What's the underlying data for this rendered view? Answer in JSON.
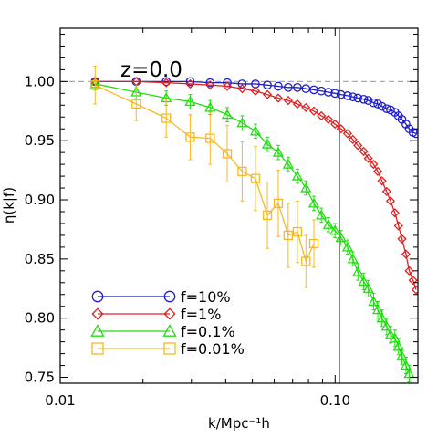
{
  "chart_data": {
    "type": "line",
    "annotation": "z=0.0",
    "xlabel": "k/Mpc⁻¹h",
    "ylabel": "η(k|f)",
    "xscale": "log",
    "xlim": [
      0.01,
      0.2
    ],
    "ylim": [
      0.745,
      1.045
    ],
    "xticks": [
      {
        "value": 0.01,
        "label": "0.01"
      },
      {
        "value": 0.1,
        "label": "0.10"
      }
    ],
    "yticks": [
      {
        "value": 0.75,
        "label": "0.75"
      },
      {
        "value": 0.8,
        "label": "0.80"
      },
      {
        "value": 0.85,
        "label": "0.85"
      },
      {
        "value": 0.9,
        "label": "0.90"
      },
      {
        "value": 0.95,
        "label": "0.95"
      },
      {
        "value": 1.0,
        "label": "1.00"
      }
    ],
    "reference_hline": 1.0,
    "reference_vline": 0.104,
    "grid": false,
    "legend_position": "bottom-left",
    "series": [
      {
        "name": "f=10%",
        "color": "#1f1fc8",
        "marker": "circle",
        "x": [
          0.0134,
          0.0189,
          0.0243,
          0.0297,
          0.0351,
          0.0405,
          0.0459,
          0.0513,
          0.0567,
          0.0621,
          0.0675,
          0.0729,
          0.0783,
          0.0837,
          0.0891,
          0.0945,
          0.0999,
          0.105,
          0.111,
          0.116,
          0.121,
          0.127,
          0.132,
          0.138,
          0.143,
          0.148,
          0.154,
          0.159,
          0.165,
          0.17,
          0.175,
          0.181,
          0.186,
          0.192,
          0.197
        ],
        "values": [
          1.0,
          1.0,
          1.0,
          1.0,
          0.999,
          0.999,
          0.998,
          0.998,
          0.997,
          0.996,
          0.995,
          0.995,
          0.994,
          0.993,
          0.992,
          0.991,
          0.99,
          0.989,
          0.988,
          0.987,
          0.986,
          0.985,
          0.984,
          0.982,
          0.981,
          0.979,
          0.977,
          0.976,
          0.974,
          0.971,
          0.968,
          0.964,
          0.96,
          0.957,
          0.956
        ],
        "errors": []
      },
      {
        "name": "f=1%",
        "color": "#e02020",
        "marker": "diamond",
        "x": [
          0.0134,
          0.0189,
          0.0243,
          0.0297,
          0.0351,
          0.0405,
          0.0459,
          0.0513,
          0.0567,
          0.0621,
          0.0675,
          0.0729,
          0.0783,
          0.0837,
          0.0891,
          0.0945,
          0.0999,
          0.105,
          0.111,
          0.116,
          0.121,
          0.127,
          0.132,
          0.138,
          0.143,
          0.148,
          0.154,
          0.159,
          0.165,
          0.17,
          0.175,
          0.181,
          0.186,
          0.192,
          0.197
        ],
        "values": [
          1.0,
          1.0,
          0.999,
          0.998,
          0.997,
          0.996,
          0.994,
          0.992,
          0.989,
          0.986,
          0.984,
          0.981,
          0.978,
          0.975,
          0.971,
          0.968,
          0.964,
          0.96,
          0.956,
          0.951,
          0.946,
          0.941,
          0.935,
          0.93,
          0.924,
          0.916,
          0.907,
          0.899,
          0.889,
          0.878,
          0.867,
          0.854,
          0.84,
          0.832,
          0.824
        ],
        "errors": []
      },
      {
        "name": "f=0.1%",
        "color": "#22dd11",
        "marker": "triangle",
        "x": [
          0.0134,
          0.0189,
          0.0243,
          0.0297,
          0.0351,
          0.0405,
          0.0459,
          0.0513,
          0.0567,
          0.0621,
          0.0675,
          0.0729,
          0.0783,
          0.0837,
          0.0891,
          0.0945,
          0.0999,
          0.105,
          0.111,
          0.116,
          0.121,
          0.127,
          0.132,
          0.138,
          0.143,
          0.148,
          0.154,
          0.159,
          0.165,
          0.17,
          0.175,
          0.181,
          0.186
        ],
        "values": [
          0.998,
          0.991,
          0.986,
          0.983,
          0.978,
          0.972,
          0.965,
          0.958,
          0.947,
          0.94,
          0.93,
          0.92,
          0.91,
          0.897,
          0.887,
          0.879,
          0.874,
          0.868,
          0.86,
          0.85,
          0.839,
          0.831,
          0.825,
          0.814,
          0.807,
          0.8,
          0.793,
          0.786,
          0.783,
          0.776,
          0.768,
          0.76,
          0.753
        ],
        "errors": [
          0.005,
          0.006,
          0.006,
          0.006,
          0.006,
          0.006,
          0.006,
          0.006,
          0.006,
          0.006,
          0.006,
          0.006,
          0.006,
          0.006,
          0.006,
          0.006,
          0.006,
          0.006,
          0.006,
          0.006,
          0.007,
          0.007,
          0.007,
          0.007,
          0.007,
          0.007,
          0.007,
          0.007,
          0.007,
          0.007,
          0.007,
          0.007,
          0.007
        ]
      },
      {
        "name": "f=0.01%",
        "color": "#f8b820",
        "marker": "square",
        "x": [
          0.0134,
          0.0189,
          0.0243,
          0.0297,
          0.0351,
          0.0405,
          0.0459,
          0.0513,
          0.0567,
          0.0621,
          0.0675,
          0.0729,
          0.0783,
          0.0837
        ],
        "values": [
          0.997,
          0.981,
          0.969,
          0.953,
          0.952,
          0.939,
          0.924,
          0.918,
          0.887,
          0.897,
          0.87,
          0.873,
          0.848,
          0.863
        ],
        "errors": [
          0.016,
          0.014,
          0.016,
          0.019,
          0.022,
          0.024,
          0.025,
          0.027,
          0.028,
          0.028,
          0.027,
          0.026,
          0.022,
          0.02
        ]
      }
    ]
  }
}
